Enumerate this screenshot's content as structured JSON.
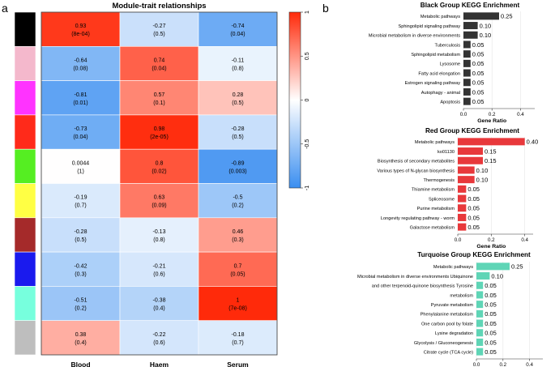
{
  "panel_labels": {
    "a": "a",
    "b": "b"
  },
  "chart_data": [
    {
      "type": "heatmap",
      "title": "Module-trait relationships",
      "columns": [
        "Blood",
        "Haem",
        "Serum"
      ],
      "row_module_colors": [
        "#000000",
        "#f4b8cc",
        "#ff33ff",
        "#ff2a1a",
        "#55ee22",
        "#ffff44",
        "#a52a2a",
        "#1a1aee",
        "#77ffdd",
        "#bebebe"
      ],
      "cells": [
        [
          {
            "r": "0.93",
            "p": "(8e-04)"
          },
          {
            "r": "-0.27",
            "p": "(0.5)"
          },
          {
            "r": "-0.74",
            "p": "(0.04)"
          }
        ],
        [
          {
            "r": "-0.64",
            "p": "(0.08)"
          },
          {
            "r": "0.74",
            "p": "(0.04)"
          },
          {
            "r": "-0.11",
            "p": "(0.8)"
          }
        ],
        [
          {
            "r": "-0.81",
            "p": "(0.01)"
          },
          {
            "r": "0.57",
            "p": "(0.1)"
          },
          {
            "r": "0.28",
            "p": "(0.5)"
          }
        ],
        [
          {
            "r": "-0.73",
            "p": "(0.04)"
          },
          {
            "r": "0.98",
            "p": "(2e-05)"
          },
          {
            "r": "-0.28",
            "p": "(0.5)"
          }
        ],
        [
          {
            "r": "0.0044",
            "p": "(1)"
          },
          {
            "r": "0.8",
            "p": "(0.02)"
          },
          {
            "r": "-0.89",
            "p": "(0.003)"
          }
        ],
        [
          {
            "r": "-0.19",
            "p": "(0.7)"
          },
          {
            "r": "0.63",
            "p": "(0.09)"
          },
          {
            "r": "-0.5",
            "p": "(0.2)"
          }
        ],
        [
          {
            "r": "-0.28",
            "p": "(0.5)"
          },
          {
            "r": "-0.13",
            "p": "(0.8)"
          },
          {
            "r": "0.46",
            "p": "(0.3)"
          }
        ],
        [
          {
            "r": "-0.42",
            "p": "(0.3)"
          },
          {
            "r": "-0.21",
            "p": "(0.6)"
          },
          {
            "r": "0.7",
            "p": "(0.05)"
          }
        ],
        [
          {
            "r": "-0.51",
            "p": "(0.2)"
          },
          {
            "r": "-0.38",
            "p": "(0.4)"
          },
          {
            "r": "1",
            "p": "(7e-08)"
          }
        ],
        [
          {
            "r": "0.38",
            "p": "(0.4)"
          },
          {
            "r": "-0.22",
            "p": "(0.6)"
          },
          {
            "r": "-0.18",
            "p": "(0.7)"
          }
        ]
      ],
      "colorbar": {
        "range": [
          -1,
          1
        ],
        "ticks": [
          "1",
          "0.5",
          "0",
          "-0.5",
          "-1"
        ],
        "low_color": "#3a8ef0",
        "mid_color": "#ffffff",
        "high_color": "#ff2a0a"
      }
    },
    {
      "type": "bar",
      "orientation": "horizontal",
      "title": "Black Group KEGG Enrichment",
      "xlabel": "Gene Ratio",
      "xlim": [
        0,
        0.5
      ],
      "xticks": [
        "0.0",
        "0.2",
        "0.4"
      ],
      "bar_color": "#333333",
      "categories": [
        "Metabolic pathways",
        "Sphingolipid signaling pathway",
        "Microbial metabolism in diverse environments",
        "Tuberculosis",
        "Sphingolipid metabolism",
        "Lysosome",
        "Fatty acid elongation",
        "Estrogen signaling pathway",
        "Autophagy - animal",
        "Apoptosis"
      ],
      "values": [
        0.25,
        0.1,
        0.1,
        0.05,
        0.05,
        0.05,
        0.05,
        0.05,
        0.05,
        0.05
      ],
      "value_labels": [
        "0.25",
        "0.10",
        "0.10",
        "0.05",
        "0.05",
        "0.05",
        "0.05",
        "0.05",
        "0.05",
        "0.05"
      ]
    },
    {
      "type": "bar",
      "orientation": "horizontal",
      "title": "Red Group KEGG Enrichment",
      "xlabel": "Gene Ratio",
      "xlim": [
        0,
        0.45
      ],
      "xticks": [
        "0.0",
        "0.2",
        "0.4"
      ],
      "bar_color": "#e8383b",
      "categories": [
        "Metabolic pathways",
        "ko01130",
        "Biosynthesis of secondary metabolites",
        "Various types of N-glycan biosynthesis",
        "Thermogenesis",
        "Thiamine metabolism",
        "Spliceosome",
        "Purine metabolism",
        "Longevity regulating pathway - worm",
        "Galactose metabolism"
      ],
      "values": [
        0.4,
        0.15,
        0.15,
        0.1,
        0.1,
        0.05,
        0.05,
        0.05,
        0.05,
        0.05
      ],
      "value_labels": [
        "0.40",
        "0.15",
        "0.15",
        "0.10",
        "0.10",
        "0.05",
        "0.05",
        "0.05",
        "0.05",
        "0.05"
      ]
    },
    {
      "type": "bar",
      "orientation": "horizontal",
      "title": "Turquoise Group KEGG Enrichment",
      "xlabel": "Gene Ratio",
      "xlim": [
        0,
        0.5
      ],
      "xticks": [
        "0.0",
        "0.2",
        "0.4"
      ],
      "bar_color": "#5fd5b6",
      "categories": [
        "Metabolic pathways",
        "Microbial metabolism in diverse environments Ubiquinone",
        "and other terpenoid-quinone biosynthesis Tyrosine",
        "metabolism",
        "Pyruvate metabolism",
        "Phenylalanine metabolism",
        "One carbon pool by folate",
        "Lysine degradation",
        "Glycolysis / Gluconeogenesis",
        "Citrate cycle (TCA cycle)"
      ],
      "values": [
        0.25,
        0.1,
        0.05,
        0.05,
        0.05,
        0.05,
        0.05,
        0.05,
        0.05,
        0.05
      ],
      "value_labels": [
        "0.25",
        "0.10",
        "0.05",
        "0.05",
        "0.05",
        "0.05",
        "0.05",
        "0.05",
        "0.05",
        "0.05"
      ]
    }
  ]
}
